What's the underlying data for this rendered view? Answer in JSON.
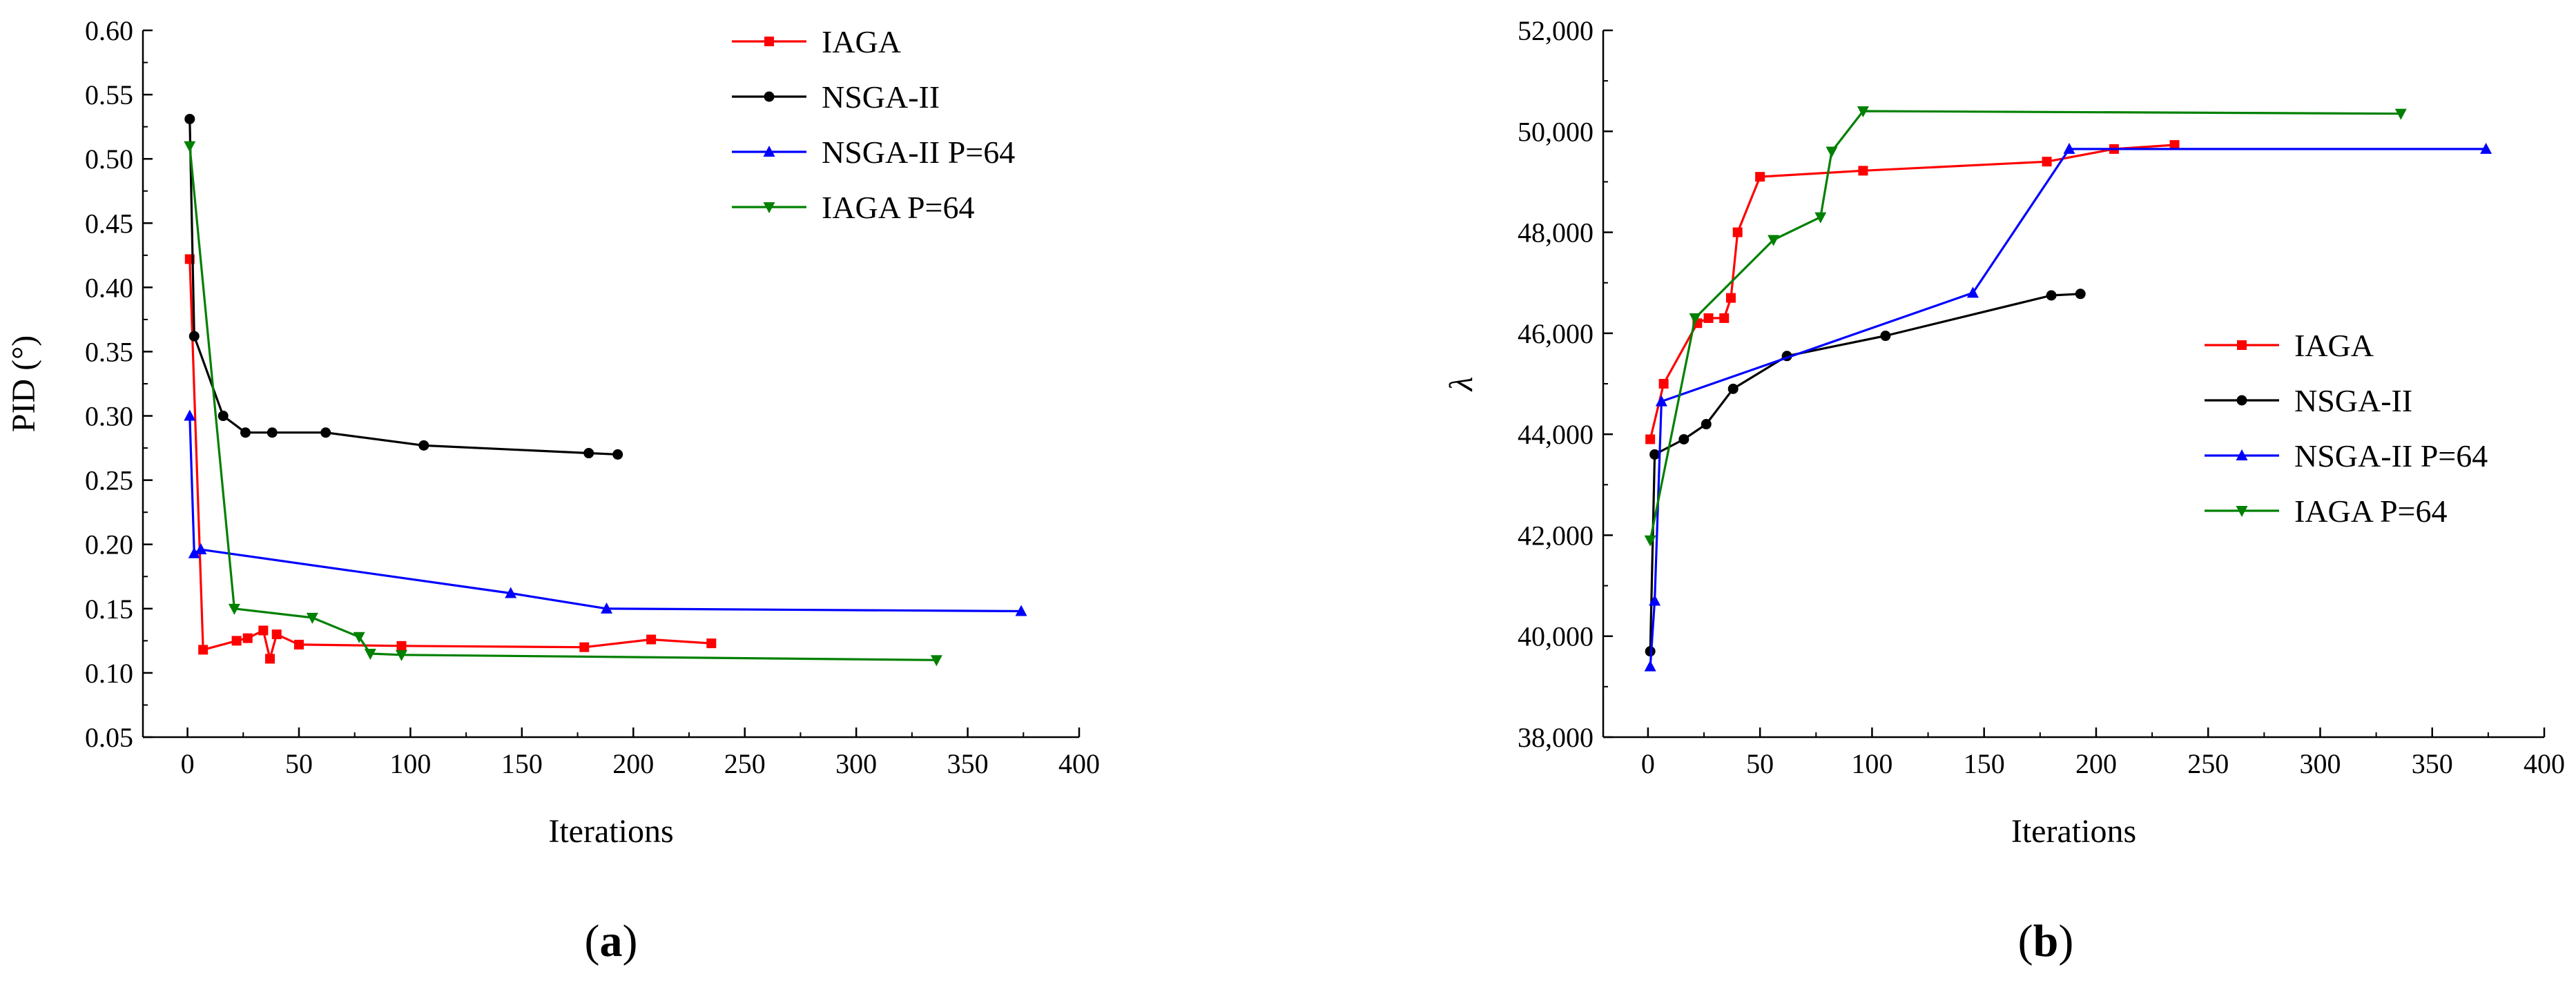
{
  "chart_data": [
    {
      "type": "line",
      "panel_label": "a",
      "xlabel": "Iterations",
      "ylabel": "PID (°)",
      "xlim": [
        -20,
        400
      ],
      "ylim": [
        0.05,
        0.6
      ],
      "xticks": [
        0,
        50,
        100,
        150,
        200,
        250,
        300,
        350,
        400
      ],
      "yticks": [
        0.05,
        0.1,
        0.15,
        0.2,
        0.25,
        0.3,
        0.35,
        0.4,
        0.45,
        0.5,
        0.55,
        0.6
      ],
      "xtick_labels": [
        "0",
        "50",
        "100",
        "150",
        "200",
        "250",
        "300",
        "350",
        "400"
      ],
      "ytick_labels": [
        "0.05",
        "0.10",
        "0.15",
        "0.20",
        "0.25",
        "0.30",
        "0.35",
        "0.40",
        "0.45",
        "0.50",
        "0.55",
        "0.60"
      ],
      "legend_position": "top-right",
      "series": [
        {
          "name": "IAGA",
          "color": "#ff0000",
          "marker": "square",
          "x": [
            1,
            7,
            22,
            27,
            34,
            37,
            40,
            50,
            96,
            178,
            208,
            235
          ],
          "y": [
            0.422,
            0.118,
            0.125,
            0.127,
            0.133,
            0.111,
            0.13,
            0.122,
            0.121,
            0.12,
            0.126,
            0.123
          ]
        },
        {
          "name": "NSGA-II",
          "color": "#000000",
          "marker": "circle",
          "x": [
            1,
            3,
            16,
            26,
            38,
            62,
            106,
            180,
            193
          ],
          "y": [
            0.531,
            0.362,
            0.3,
            0.287,
            0.287,
            0.287,
            0.277,
            0.271,
            0.27
          ]
        },
        {
          "name": "NSGA-II P=64",
          "color": "#0000ff",
          "marker": "triangle-up",
          "x": [
            1,
            3,
            6,
            145,
            188,
            374
          ],
          "y": [
            0.3,
            0.193,
            0.196,
            0.162,
            0.15,
            0.148
          ]
        },
        {
          "name": "IAGA P=64",
          "color": "#008000",
          "marker": "triangle-down",
          "x": [
            1,
            21,
            56,
            77,
            82,
            96,
            336
          ],
          "y": [
            0.51,
            0.15,
            0.143,
            0.128,
            0.115,
            0.114,
            0.11
          ]
        }
      ]
    },
    {
      "type": "line",
      "panel_label": "b",
      "xlabel": "Iterations",
      "ylabel": "λ",
      "xlim": [
        -20,
        400
      ],
      "ylim": [
        38000,
        52000
      ],
      "xticks": [
        0,
        50,
        100,
        150,
        200,
        250,
        300,
        350,
        400
      ],
      "yticks": [
        38000,
        40000,
        42000,
        44000,
        46000,
        48000,
        50000,
        52000
      ],
      "xtick_labels": [
        "0",
        "50",
        "100",
        "150",
        "200",
        "250",
        "300",
        "350",
        "400"
      ],
      "ytick_labels": [
        "38,000",
        "40,000",
        "42,000",
        "44,000",
        "46,000",
        "48,000",
        "50,000",
        "52,000"
      ],
      "legend_position": "center-right",
      "series": [
        {
          "name": "IAGA",
          "color": "#ff0000",
          "marker": "square",
          "x": [
            1,
            7,
            22,
            27,
            34,
            37,
            40,
            50,
            96,
            178,
            208,
            235
          ],
          "y": [
            43900,
            45000,
            46200,
            46300,
            46300,
            46700,
            48000,
            49100,
            49220,
            49400,
            49650,
            49730
          ]
        },
        {
          "name": "NSGA-II",
          "color": "#000000",
          "marker": "circle",
          "x": [
            1,
            3,
            16,
            26,
            38,
            62,
            106,
            180,
            193
          ],
          "y": [
            39700,
            43600,
            43900,
            44200,
            44900,
            45550,
            45950,
            46750,
            46780
          ]
        },
        {
          "name": "NSGA-II P=64",
          "color": "#0000ff",
          "marker": "triangle-up",
          "x": [
            1,
            3,
            6,
            145,
            188,
            374
          ],
          "y": [
            39400,
            40700,
            44650,
            46800,
            49650,
            49650
          ]
        },
        {
          "name": "IAGA P=64",
          "color": "#008000",
          "marker": "triangle-down",
          "x": [
            1,
            21,
            56,
            77,
            82,
            96,
            336
          ],
          "y": [
            41900,
            46300,
            47850,
            48300,
            49600,
            50400,
            50350
          ]
        }
      ]
    }
  ]
}
